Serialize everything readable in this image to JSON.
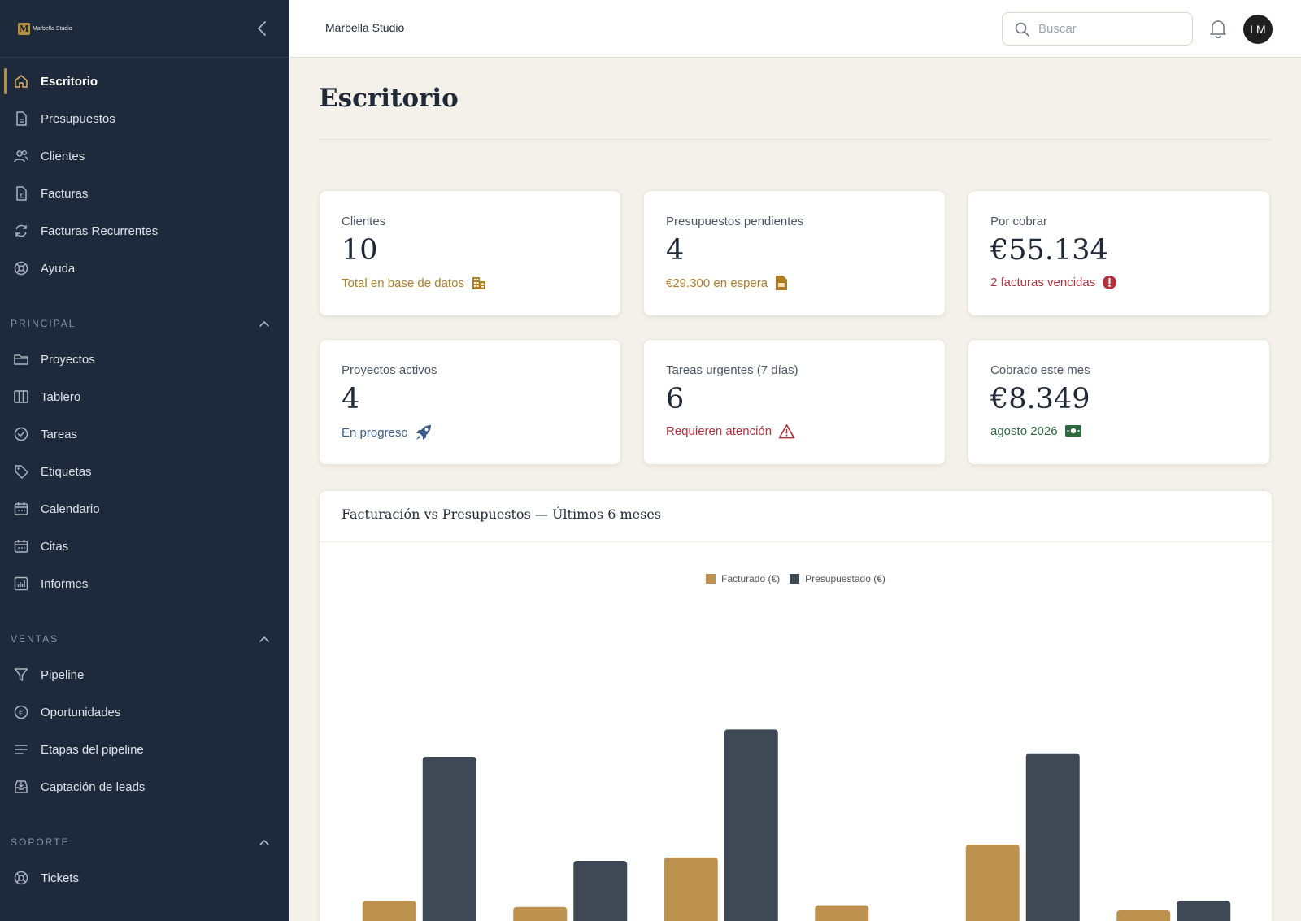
{
  "brand": {
    "logo_letter": "M",
    "name": "Marbella Studio"
  },
  "sidebar": {
    "top_items": [
      {
        "label": "Escritorio",
        "icon": "home-icon",
        "active": true
      },
      {
        "label": "Presupuestos",
        "icon": "document-icon"
      },
      {
        "label": "Clientes",
        "icon": "users-icon"
      },
      {
        "label": "Facturas",
        "icon": "invoice-icon"
      },
      {
        "label": "Facturas Recurrentes",
        "icon": "refresh-icon"
      },
      {
        "label": "Ayuda",
        "icon": "lifebuoy-icon"
      }
    ],
    "sections": [
      {
        "title": "PRINCIPAL",
        "items": [
          {
            "label": "Proyectos",
            "icon": "folder-icon"
          },
          {
            "label": "Tablero",
            "icon": "columns-icon"
          },
          {
            "label": "Tareas",
            "icon": "check-circle-icon"
          },
          {
            "label": "Etiquetas",
            "icon": "tag-icon"
          },
          {
            "label": "Calendario",
            "icon": "calendar-icon"
          },
          {
            "label": "Citas",
            "icon": "calendar-icon"
          },
          {
            "label": "Informes",
            "icon": "chart-icon"
          }
        ]
      },
      {
        "title": "VENTAS",
        "items": [
          {
            "label": "Pipeline",
            "icon": "funnel-icon"
          },
          {
            "label": "Oportunidades",
            "icon": "euro-icon"
          },
          {
            "label": "Etapas del pipeline",
            "icon": "list-icon"
          },
          {
            "label": "Captación de leads",
            "icon": "inbox-icon"
          }
        ]
      },
      {
        "title": "SOPORTE",
        "items": [
          {
            "label": "Tickets",
            "icon": "lifebuoy-icon"
          }
        ]
      }
    ]
  },
  "topbar": {
    "title": "Marbella Studio",
    "search_placeholder": "Buscar",
    "avatar_initials": "LM"
  },
  "page": {
    "title": "Escritorio"
  },
  "cards": [
    {
      "label": "Clientes",
      "value": "10",
      "sub": "Total en base de datos",
      "tone": "gold",
      "icon": "building-icon"
    },
    {
      "label": "Presupuestos pendientes",
      "value": "4",
      "sub": "€29.300 en espera",
      "tone": "gold",
      "icon": "file-icon"
    },
    {
      "label": "Por cobrar",
      "value": "€55.134",
      "sub": "2 facturas vencidas",
      "tone": "red",
      "icon": "alert-circle-icon"
    },
    {
      "label": "Proyectos activos",
      "value": "4",
      "sub": "En progreso",
      "tone": "blue",
      "icon": "rocket-icon"
    },
    {
      "label": "Tareas urgentes (7 días)",
      "value": "6",
      "sub": "Requieren atención",
      "tone": "red",
      "icon": "warning-icon"
    },
    {
      "label": "Cobrado este mes",
      "value": "€8.349",
      "sub": "agosto 2026",
      "tone": "green",
      "icon": "money-icon"
    }
  ],
  "chart_data": {
    "type": "bar",
    "title": "Facturación vs Presupuestos — Últimos 6 meses",
    "categories": [
      "",
      "",
      "",
      "",
      "",
      ""
    ],
    "series": [
      {
        "name": "Facturado (€)",
        "color": "#bd924e",
        "values": [
          7200,
          6500,
          12300,
          6700,
          13800,
          6100
        ]
      },
      {
        "name": "Presupuestado (€)",
        "color": "#3f4855",
        "values": [
          24100,
          11900,
          27300,
          4600,
          24500,
          7200
        ]
      }
    ],
    "ylim": [
      0,
      40000
    ]
  }
}
